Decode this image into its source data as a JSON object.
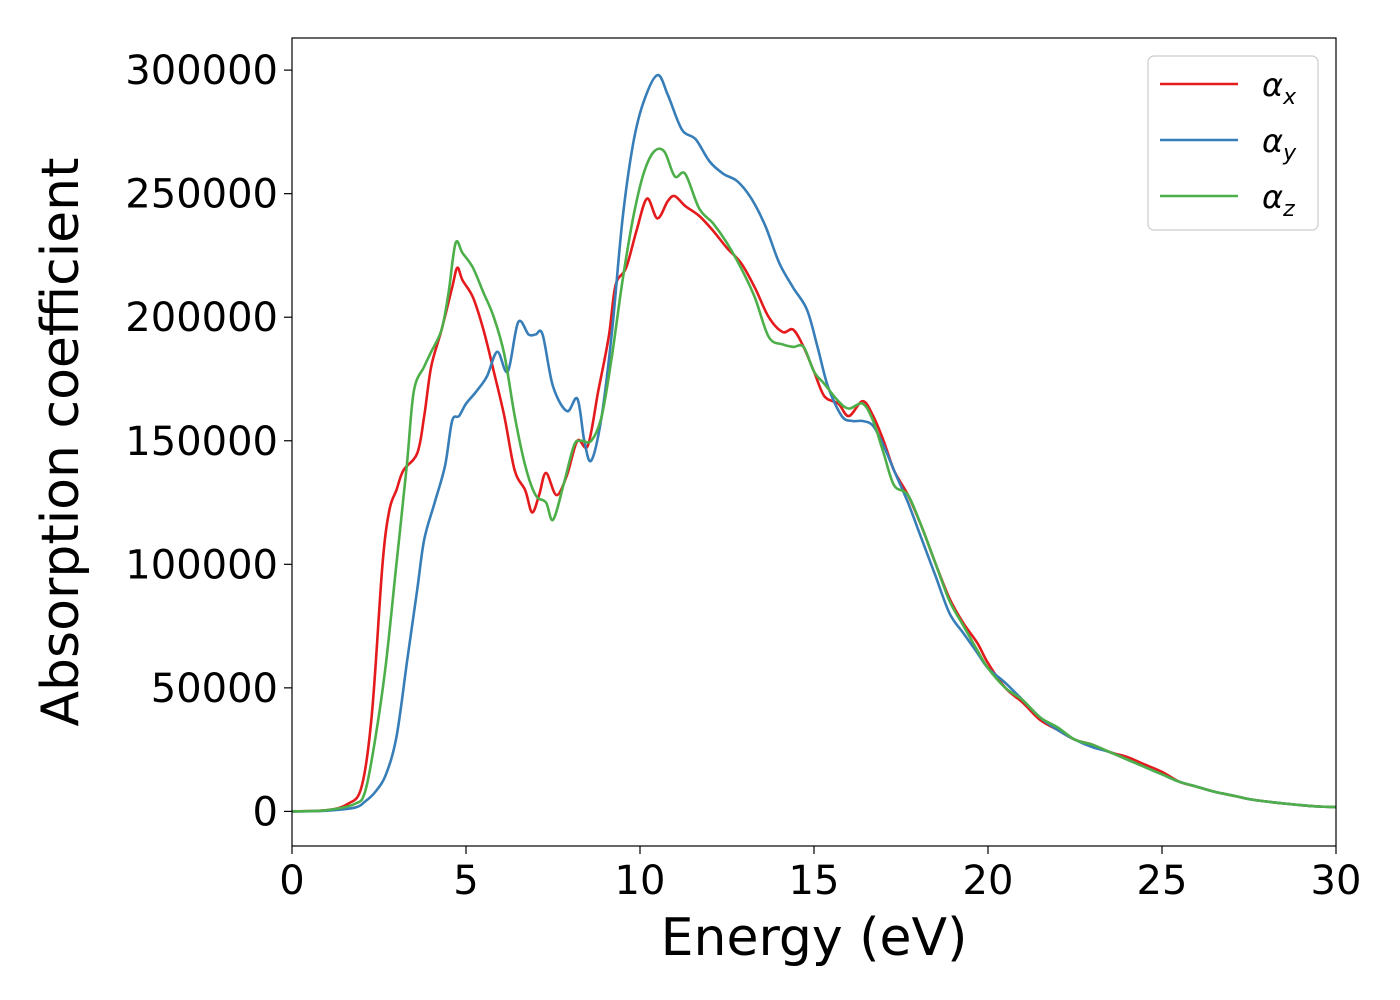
{
  "chart_data": {
    "type": "line",
    "title": "",
    "xlabel": "Energy (eV)",
    "ylabel": "Absorption coefficient",
    "xlim": [
      0,
      30
    ],
    "ylim": [
      -14000,
      313000
    ],
    "xticks": [
      0,
      5,
      10,
      15,
      20,
      25,
      30
    ],
    "xtick_labels": [
      "0",
      "5",
      "10",
      "15",
      "20",
      "25",
      "30"
    ],
    "yticks": [
      0,
      50000,
      100000,
      150000,
      200000,
      250000,
      300000
    ],
    "ytick_labels": [
      "0",
      "50000",
      "100000",
      "150000",
      "200000",
      "250000",
      "300000"
    ],
    "grid": false,
    "legend_position": "top-right",
    "series": [
      {
        "name": "α",
        "subscript": "x",
        "color": "#e41a1c",
        "points": [
          [
            0,
            0
          ],
          [
            1,
            500
          ],
          [
            1.6,
            3000
          ],
          [
            2.0,
            10000
          ],
          [
            2.3,
            40000
          ],
          [
            2.6,
            100000
          ],
          [
            2.8,
            122000
          ],
          [
            3.0,
            130000
          ],
          [
            3.2,
            138000
          ],
          [
            3.6,
            145000
          ],
          [
            3.8,
            160000
          ],
          [
            4.0,
            180000
          ],
          [
            4.3,
            195000
          ],
          [
            4.6,
            212000
          ],
          [
            4.75,
            220000
          ],
          [
            4.9,
            215000
          ],
          [
            5.2,
            208000
          ],
          [
            5.5,
            195000
          ],
          [
            5.8,
            178000
          ],
          [
            6.1,
            160000
          ],
          [
            6.4,
            138000
          ],
          [
            6.7,
            130000
          ],
          [
            6.9,
            121000
          ],
          [
            7.1,
            128000
          ],
          [
            7.3,
            137000
          ],
          [
            7.6,
            128000
          ],
          [
            7.9,
            136000
          ],
          [
            8.2,
            150000
          ],
          [
            8.5,
            148000
          ],
          [
            8.8,
            170000
          ],
          [
            9.1,
            192000
          ],
          [
            9.3,
            213000
          ],
          [
            9.6,
            220000
          ],
          [
            9.9,
            235000
          ],
          [
            10.2,
            248000
          ],
          [
            10.5,
            240000
          ],
          [
            10.8,
            247000
          ],
          [
            11.0,
            249000
          ],
          [
            11.3,
            245000
          ],
          [
            11.7,
            241000
          ],
          [
            12.1,
            235000
          ],
          [
            12.5,
            228000
          ],
          [
            12.9,
            222000
          ],
          [
            13.3,
            212000
          ],
          [
            13.7,
            200000
          ],
          [
            14.1,
            194000
          ],
          [
            14.4,
            195000
          ],
          [
            14.7,
            188000
          ],
          [
            15.0,
            178000
          ],
          [
            15.3,
            168000
          ],
          [
            15.7,
            165000
          ],
          [
            16.0,
            160000
          ],
          [
            16.4,
            166000
          ],
          [
            16.7,
            160000
          ],
          [
            17.0,
            150000
          ],
          [
            17.3,
            138000
          ],
          [
            17.7,
            128000
          ],
          [
            18.1,
            115000
          ],
          [
            18.5,
            100000
          ],
          [
            18.9,
            86000
          ],
          [
            19.3,
            76000
          ],
          [
            19.7,
            68000
          ],
          [
            20.0,
            60000
          ],
          [
            20.5,
            50000
          ],
          [
            21.0,
            44000
          ],
          [
            21.5,
            37000
          ],
          [
            22.0,
            33000
          ],
          [
            22.5,
            29000
          ],
          [
            23.0,
            27000
          ],
          [
            23.5,
            24000
          ],
          [
            24.0,
            22000
          ],
          [
            24.5,
            19000
          ],
          [
            25.0,
            16000
          ],
          [
            25.5,
            12000
          ],
          [
            26.0,
            10000
          ],
          [
            26.5,
            8000
          ],
          [
            27.0,
            6500
          ],
          [
            27.5,
            5000
          ],
          [
            28.0,
            4000
          ],
          [
            28.5,
            3200
          ],
          [
            29.0,
            2500
          ],
          [
            29.5,
            2000
          ],
          [
            30.0,
            1800
          ]
        ]
      },
      {
        "name": "α",
        "subscript": "y",
        "color": "#377eb8",
        "points": [
          [
            0,
            0
          ],
          [
            1,
            300
          ],
          [
            1.8,
            1500
          ],
          [
            2.1,
            4000
          ],
          [
            2.4,
            8000
          ],
          [
            2.7,
            15000
          ],
          [
            3.0,
            30000
          ],
          [
            3.3,
            60000
          ],
          [
            3.6,
            90000
          ],
          [
            3.8,
            110000
          ],
          [
            4.1,
            125000
          ],
          [
            4.4,
            140000
          ],
          [
            4.6,
            158000
          ],
          [
            4.8,
            160000
          ],
          [
            5.0,
            165000
          ],
          [
            5.3,
            170000
          ],
          [
            5.6,
            176000
          ],
          [
            5.9,
            186000
          ],
          [
            6.2,
            178000
          ],
          [
            6.5,
            198000
          ],
          [
            6.8,
            193000
          ],
          [
            7.0,
            193000
          ],
          [
            7.2,
            193000
          ],
          [
            7.5,
            172000
          ],
          [
            7.9,
            162000
          ],
          [
            8.2,
            167000
          ],
          [
            8.4,
            150000
          ],
          [
            8.6,
            142000
          ],
          [
            8.9,
            160000
          ],
          [
            9.2,
            195000
          ],
          [
            9.5,
            240000
          ],
          [
            9.8,
            270000
          ],
          [
            10.1,
            287000
          ],
          [
            10.5,
            298000
          ],
          [
            10.8,
            290000
          ],
          [
            11.2,
            276000
          ],
          [
            11.6,
            272000
          ],
          [
            12.0,
            263000
          ],
          [
            12.4,
            258000
          ],
          [
            12.8,
            255000
          ],
          [
            13.2,
            248000
          ],
          [
            13.6,
            237000
          ],
          [
            14.0,
            222000
          ],
          [
            14.4,
            212000
          ],
          [
            14.8,
            203000
          ],
          [
            15.1,
            188000
          ],
          [
            15.4,
            172000
          ],
          [
            15.8,
            160000
          ],
          [
            16.1,
            158000
          ],
          [
            16.4,
            158000
          ],
          [
            16.7,
            156000
          ],
          [
            17.0,
            148000
          ],
          [
            17.3,
            138000
          ],
          [
            17.7,
            125000
          ],
          [
            18.1,
            110000
          ],
          [
            18.5,
            95000
          ],
          [
            18.9,
            80000
          ],
          [
            19.3,
            72000
          ],
          [
            19.7,
            64000
          ],
          [
            20.0,
            58000
          ],
          [
            20.5,
            52000
          ],
          [
            21.0,
            45000
          ],
          [
            21.5,
            38000
          ],
          [
            22.0,
            33000
          ],
          [
            22.5,
            29000
          ],
          [
            23.0,
            26000
          ],
          [
            23.5,
            24000
          ],
          [
            24.0,
            21000
          ],
          [
            24.5,
            18000
          ],
          [
            25.0,
            15000
          ],
          [
            25.5,
            12000
          ],
          [
            26.0,
            10000
          ],
          [
            26.5,
            8000
          ],
          [
            27.0,
            6500
          ],
          [
            27.5,
            5000
          ],
          [
            28.0,
            4000
          ],
          [
            28.5,
            3200
          ],
          [
            29.0,
            2500
          ],
          [
            29.5,
            2000
          ],
          [
            30.0,
            1800
          ]
        ]
      },
      {
        "name": "α",
        "subscript": "z",
        "color": "#4daf4a",
        "points": [
          [
            0,
            0
          ],
          [
            1,
            500
          ],
          [
            1.8,
            3000
          ],
          [
            2.1,
            8000
          ],
          [
            2.4,
            30000
          ],
          [
            2.7,
            60000
          ],
          [
            3.0,
            100000
          ],
          [
            3.3,
            140000
          ],
          [
            3.5,
            170000
          ],
          [
            3.8,
            180000
          ],
          [
            4.0,
            186000
          ],
          [
            4.3,
            195000
          ],
          [
            4.5,
            210000
          ],
          [
            4.7,
            230000
          ],
          [
            4.9,
            226000
          ],
          [
            5.2,
            220000
          ],
          [
            5.5,
            210000
          ],
          [
            5.8,
            200000
          ],
          [
            6.1,
            185000
          ],
          [
            6.4,
            160000
          ],
          [
            6.7,
            140000
          ],
          [
            7.0,
            128000
          ],
          [
            7.3,
            125000
          ],
          [
            7.5,
            118000
          ],
          [
            7.8,
            132000
          ],
          [
            8.1,
            148000
          ],
          [
            8.3,
            150000
          ],
          [
            8.6,
            150000
          ],
          [
            8.9,
            160000
          ],
          [
            9.2,
            185000
          ],
          [
            9.5,
            215000
          ],
          [
            9.8,
            240000
          ],
          [
            10.1,
            258000
          ],
          [
            10.4,
            267000
          ],
          [
            10.7,
            267000
          ],
          [
            11.0,
            257000
          ],
          [
            11.3,
            258000
          ],
          [
            11.7,
            244000
          ],
          [
            12.1,
            238000
          ],
          [
            12.5,
            230000
          ],
          [
            12.9,
            220000
          ],
          [
            13.3,
            208000
          ],
          [
            13.7,
            192000
          ],
          [
            14.1,
            189000
          ],
          [
            14.4,
            188000
          ],
          [
            14.7,
            188000
          ],
          [
            15.0,
            178000
          ],
          [
            15.3,
            173000
          ],
          [
            15.7,
            166000
          ],
          [
            16.0,
            163000
          ],
          [
            16.4,
            165000
          ],
          [
            16.7,
            158000
          ],
          [
            17.0,
            145000
          ],
          [
            17.3,
            132000
          ],
          [
            17.7,
            128000
          ],
          [
            18.1,
            115000
          ],
          [
            18.5,
            100000
          ],
          [
            18.9,
            85000
          ],
          [
            19.3,
            75000
          ],
          [
            19.7,
            65000
          ],
          [
            20.0,
            58000
          ],
          [
            20.5,
            50000
          ],
          [
            21.0,
            45000
          ],
          [
            21.5,
            38000
          ],
          [
            22.0,
            34000
          ],
          [
            22.5,
            29000
          ],
          [
            23.0,
            27000
          ],
          [
            23.5,
            24000
          ],
          [
            24.0,
            21000
          ],
          [
            24.5,
            18000
          ],
          [
            25.0,
            15000
          ],
          [
            25.5,
            12000
          ],
          [
            26.0,
            10000
          ],
          [
            26.5,
            8000
          ],
          [
            27.0,
            6500
          ],
          [
            27.5,
            5000
          ],
          [
            28.0,
            4000
          ],
          [
            28.5,
            3200
          ],
          [
            29.0,
            2500
          ],
          [
            29.5,
            2000
          ],
          [
            30.0,
            1800
          ]
        ]
      }
    ]
  }
}
